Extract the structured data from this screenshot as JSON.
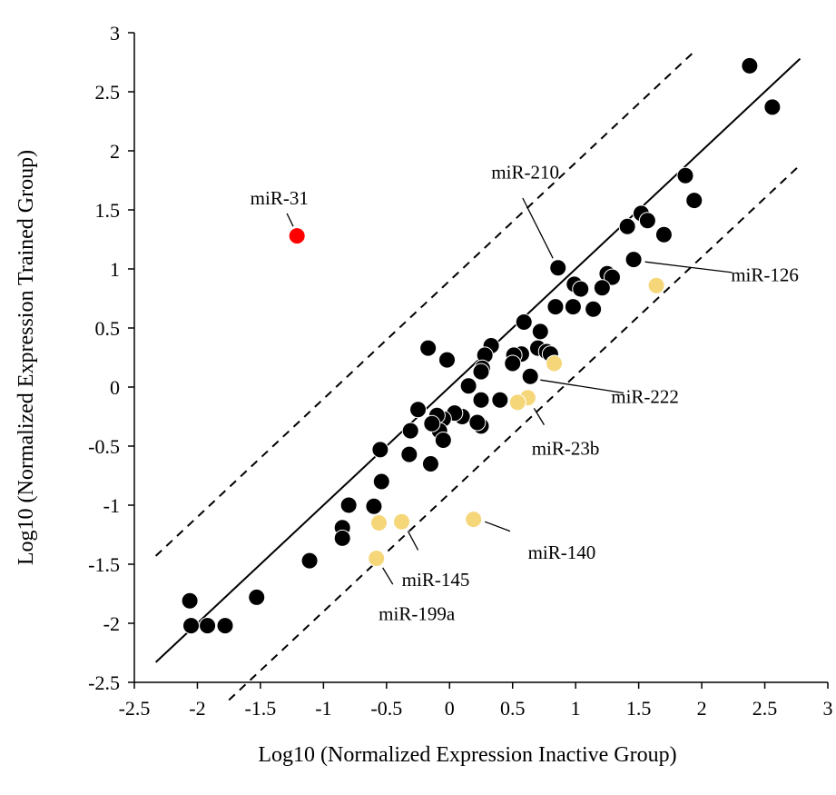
{
  "chart_data": {
    "type": "scatter",
    "title": "",
    "xlabel": "Log10 (Normalized Expression Inactive Group)",
    "ylabel": "Log10 (Normalized Expression Trained Group)",
    "xlim": [
      -2.5,
      3
    ],
    "ylim": [
      -2.5,
      3
    ],
    "xticks": [
      "-2.5",
      "-2",
      "-1.5",
      "-1",
      "-0.5",
      "0",
      "0.5",
      "1",
      "1.5",
      "2",
      "2.5",
      "3"
    ],
    "yticks": [
      "-2.5",
      "-2",
      "-1.5",
      "-1",
      "-0.5",
      "0",
      "0.5",
      "1",
      "1.5",
      "2",
      "2.5",
      "3"
    ],
    "grid": false,
    "colors": {
      "default": "#000000",
      "upregulated": "#ff0000",
      "downregulated": "#f5d77a"
    },
    "reference_lines": [
      {
        "style": "solid",
        "slope": 1,
        "intercept": 0,
        "x_range": [
          -2.33,
          2.78
        ]
      },
      {
        "style": "dashed",
        "slope": 1,
        "intercept": 0.9,
        "x_range": [
          -2.33,
          1.93
        ]
      },
      {
        "style": "dashed",
        "slope": 1,
        "intercept": -0.9,
        "x_range": [
          -1.75,
          2.78
        ]
      }
    ],
    "series": [
      {
        "color": "#000000",
        "points": [
          [
            2.38,
            2.72
          ],
          [
            2.56,
            2.37
          ],
          [
            1.87,
            1.79
          ],
          [
            1.94,
            1.58
          ],
          [
            1.52,
            1.47
          ],
          [
            1.41,
            1.36
          ],
          [
            1.57,
            1.41
          ],
          [
            1.7,
            1.29
          ],
          [
            1.46,
            1.08
          ],
          [
            1.25,
            0.96
          ],
          [
            1.29,
            0.93
          ],
          [
            1.21,
            0.84
          ],
          [
            1.14,
            0.66
          ],
          [
            0.98,
            0.68
          ],
          [
            0.99,
            0.87
          ],
          [
            1.04,
            0.83
          ],
          [
            0.86,
            1.01
          ],
          [
            0.84,
            0.68
          ],
          [
            0.59,
            0.55
          ],
          [
            0.72,
            0.47
          ],
          [
            0.7,
            0.33
          ],
          [
            0.77,
            0.3
          ],
          [
            0.8,
            0.28
          ],
          [
            0.57,
            0.28
          ],
          [
            0.51,
            0.27
          ],
          [
            0.5,
            0.2
          ],
          [
            0.64,
            0.09
          ],
          [
            0.33,
            0.35
          ],
          [
            0.28,
            0.27
          ],
          [
            0.26,
            0.16
          ],
          [
            0.25,
            0.13
          ],
          [
            0.15,
            0.01
          ],
          [
            0.25,
            -0.11
          ],
          [
            0.4,
            -0.11
          ],
          [
            0.25,
            -0.33
          ],
          [
            0.1,
            -0.25
          ],
          [
            0.04,
            -0.22
          ],
          [
            0.22,
            -0.3
          ],
          [
            -0.02,
            0.23
          ],
          [
            -0.05,
            -0.27
          ],
          [
            -0.1,
            -0.24
          ],
          [
            -0.08,
            -0.37
          ],
          [
            -0.05,
            -0.45
          ],
          [
            -0.14,
            -0.31
          ],
          [
            -0.25,
            -0.19
          ],
          [
            -0.31,
            -0.37
          ],
          [
            -0.32,
            -0.57
          ],
          [
            -0.15,
            -0.65
          ],
          [
            -0.17,
            0.33
          ],
          [
            -0.55,
            -0.53
          ],
          [
            -0.54,
            -0.8
          ],
          [
            -0.6,
            -1.01
          ],
          [
            -0.8,
            -1.0
          ],
          [
            -0.85,
            -1.19
          ],
          [
            -0.85,
            -1.28
          ],
          [
            -1.11,
            -1.47
          ],
          [
            -1.53,
            -1.78
          ],
          [
            -2.06,
            -1.81
          ],
          [
            -2.05,
            -2.02
          ],
          [
            -1.92,
            -2.02
          ],
          [
            -1.78,
            -2.02
          ]
        ]
      },
      {
        "color": "#ff0000",
        "points": [
          [
            -1.21,
            1.28
          ]
        ]
      },
      {
        "color": "#f5d77a",
        "points": [
          [
            1.64,
            0.86
          ],
          [
            0.83,
            0.2
          ],
          [
            0.62,
            -0.09
          ],
          [
            0.54,
            -0.13
          ],
          [
            0.19,
            -1.12
          ],
          [
            -0.38,
            -1.14
          ],
          [
            -0.56,
            -1.15
          ],
          [
            -0.58,
            -1.45
          ]
        ]
      }
    ],
    "annotations": [
      {
        "text": "miR-31",
        "point": [
          -1.21,
          1.28
        ],
        "label_at": [
          -1.35,
          1.6
        ],
        "leader": [
          [
            -1.29,
            1.47
          ],
          [
            -1.24,
            1.36
          ]
        ]
      },
      {
        "text": "miR-210",
        "point": [
          0.86,
          1.01
        ],
        "label_at": [
          0.6,
          1.82
        ],
        "leader": [
          [
            0.58,
            1.6
          ],
          [
            0.82,
            1.09
          ]
        ]
      },
      {
        "text": "miR-126",
        "point": [
          1.46,
          1.08
        ],
        "label_at": [
          2.5,
          0.95
        ],
        "leader": [
          [
            1.55,
            1.06
          ],
          [
            2.24,
            0.97
          ]
        ]
      },
      {
        "text": "miR-222",
        "point": [
          0.64,
          0.09
        ],
        "label_at": [
          1.55,
          -0.08
        ],
        "leader": [
          [
            0.72,
            0.06
          ],
          [
            1.38,
            -0.05
          ]
        ]
      },
      {
        "text": "miR-23b",
        "point": [
          0.62,
          -0.09
        ],
        "label_at": [
          0.92,
          -0.52
        ],
        "leader": [
          [
            0.67,
            -0.18
          ],
          [
            0.75,
            -0.32
          ]
        ]
      },
      {
        "text": "miR-140",
        "point": [
          0.19,
          -1.12
        ],
        "label_at": [
          0.89,
          -1.4
        ],
        "leader": [
          [
            0.28,
            -1.14
          ],
          [
            0.48,
            -1.22
          ]
        ]
      },
      {
        "text": "miR-145",
        "point": [
          -0.38,
          -1.14
        ],
        "label_at": [
          -0.11,
          -1.63
        ],
        "leader": [
          [
            -0.33,
            -1.22
          ],
          [
            -0.25,
            -1.38
          ]
        ]
      },
      {
        "text": "miR-199a",
        "point": [
          -0.58,
          -1.45
        ],
        "label_at": [
          -0.26,
          -1.92
        ],
        "leader": [
          [
            -0.53,
            -1.53
          ],
          [
            -0.45,
            -1.67
          ]
        ]
      }
    ]
  }
}
